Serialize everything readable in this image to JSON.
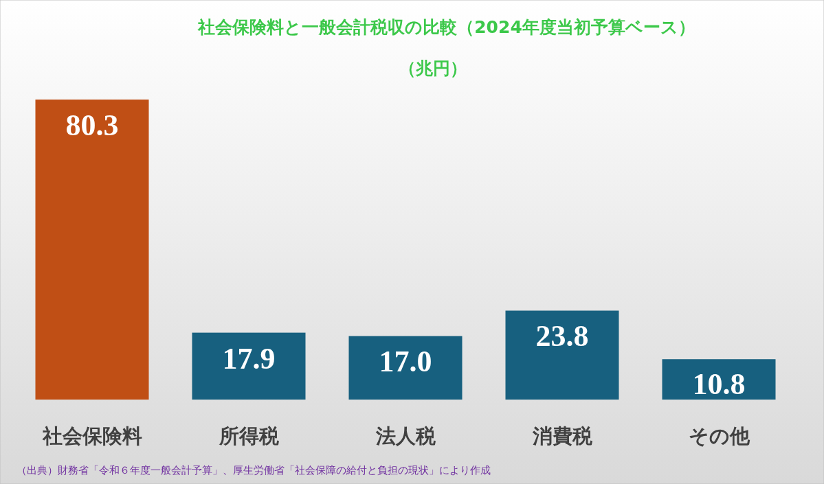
{
  "chart_data": {
    "type": "bar",
    "title": "社会保険料と一般会計税収の比較（2024年度当初予算ベース）",
    "subtitle": "（兆円）",
    "categories": [
      "社会保険料",
      "所得税",
      "法人税",
      "消費税",
      "その他"
    ],
    "values": [
      80.3,
      17.9,
      17.0,
      23.8,
      10.8
    ],
    "colors": [
      "#c04f15",
      "#17607f",
      "#17607f",
      "#17607f",
      "#17607f"
    ],
    "value_labels": [
      "80.3",
      "17.9",
      "17.0",
      "23.8",
      "10.8"
    ],
    "annotations": [
      "（出典）財務省「令和６年度一般会計予算」、厚生労働省「社会保障の給付と負担の現状」により作成"
    ]
  }
}
